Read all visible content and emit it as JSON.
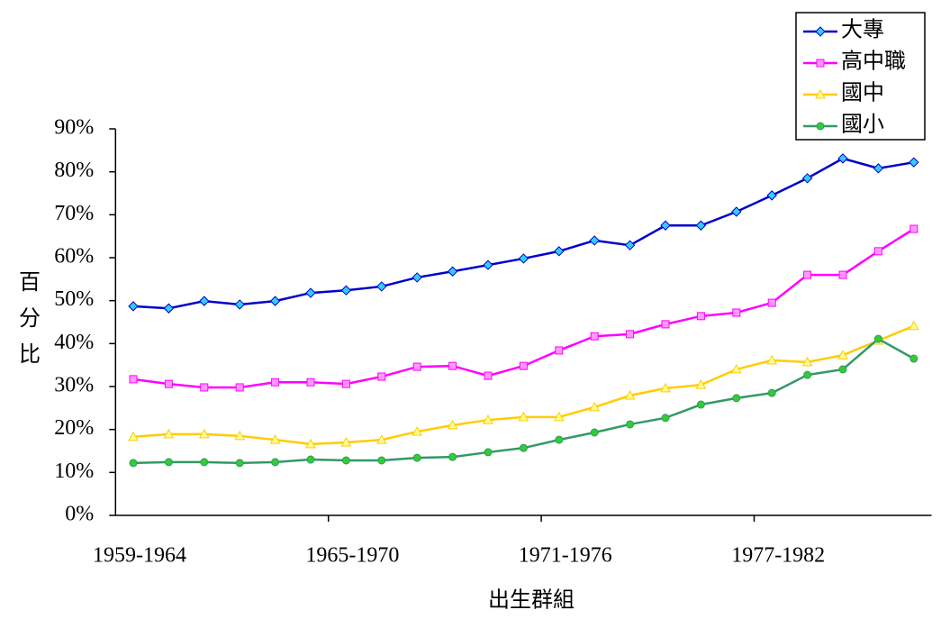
{
  "chart_data": {
    "type": "line",
    "xlabel": "出生群組",
    "ylabel": "百分比",
    "categories": [
      "1959-1964",
      null,
      null,
      null,
      null,
      null,
      "1965-1970",
      null,
      null,
      null,
      null,
      null,
      "1971-1976",
      null,
      null,
      null,
      null,
      null,
      "1977-1982",
      null,
      null,
      null,
      null
    ],
    "series": [
      {
        "name": "大專",
        "color": "#0000cc",
        "marker": "diamond",
        "marker_color": "#33ccff",
        "values": [
          48.7,
          48.2,
          49.9,
          49.1,
          49.9,
          51.8,
          52.4,
          53.3,
          55.4,
          56.8,
          58.3,
          59.8,
          61.5,
          64.0,
          62.9,
          67.5,
          67.5,
          70.7,
          74.5,
          78.5,
          83.1,
          80.8,
          82.2
        ]
      },
      {
        "name": "高中職",
        "color": "#ff00ff",
        "marker": "square",
        "marker_color": "#ff99ff",
        "values": [
          31.7,
          30.6,
          29.8,
          29.8,
          31.0,
          31.0,
          30.6,
          32.3,
          34.6,
          34.8,
          32.5,
          34.8,
          38.4,
          41.7,
          42.2,
          44.5,
          46.4,
          47.2,
          49.5,
          56.0,
          56.0,
          61.5,
          66.7
        ]
      },
      {
        "name": "國中",
        "color": "#ffcc00",
        "marker": "triangle",
        "marker_color": "#ffff99",
        "values": [
          18.3,
          18.9,
          18.9,
          18.5,
          17.6,
          16.6,
          17.0,
          17.6,
          19.5,
          21.0,
          22.2,
          22.9,
          22.9,
          25.2,
          27.9,
          29.6,
          30.4,
          34.0,
          36.1,
          35.7,
          37.3,
          40.7,
          44.1
        ]
      },
      {
        "name": "國小",
        "color": "#339966",
        "marker": "circle",
        "marker_color": "#33cc33",
        "values": [
          12.2,
          12.4,
          12.4,
          12.2,
          12.4,
          13.0,
          12.8,
          12.8,
          13.4,
          13.6,
          14.7,
          15.7,
          17.6,
          19.3,
          21.2,
          22.7,
          25.8,
          27.3,
          28.5,
          32.7,
          34.0,
          41.1,
          36.5
        ]
      }
    ],
    "ylim": [
      0,
      90
    ],
    "yticks": [
      {
        "value": 0,
        "label": "0%"
      },
      {
        "value": 10,
        "label": "10%"
      },
      {
        "value": 20,
        "label": "20%"
      },
      {
        "value": 30,
        "label": "30%"
      },
      {
        "value": 40,
        "label": "40%"
      },
      {
        "value": 50,
        "label": "50%"
      },
      {
        "value": 60,
        "label": "60%"
      },
      {
        "value": 70,
        "label": "70%"
      },
      {
        "value": 80,
        "label": "80%"
      },
      {
        "value": 90,
        "label": "90%"
      }
    ],
    "legend": "top-right",
    "grid": false
  }
}
